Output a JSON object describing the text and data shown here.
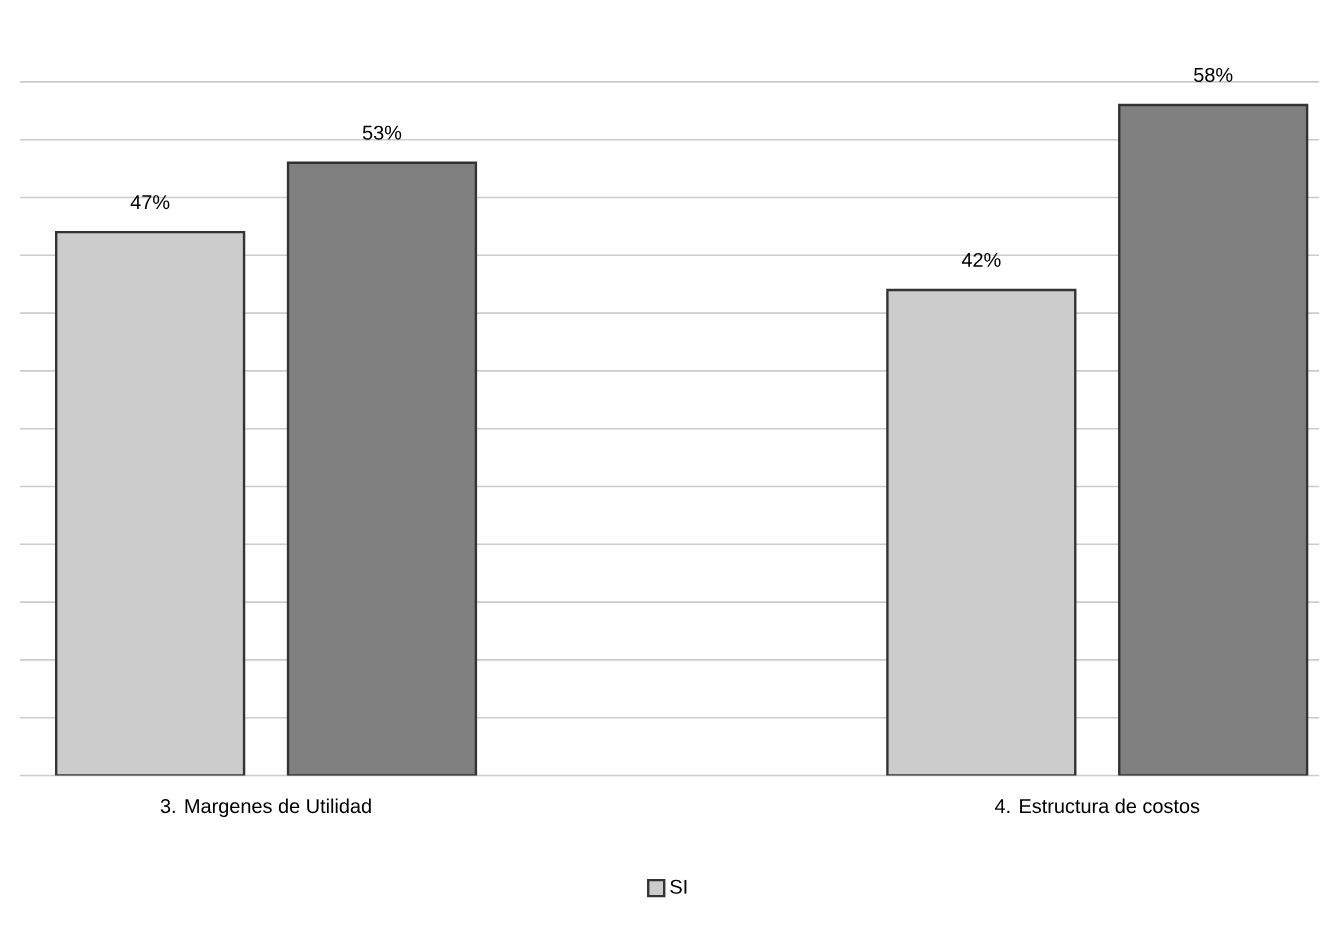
{
  "chart_data": {
    "type": "bar",
    "grid": "y",
    "legend": "bottom",
    "categories": [
      "3. Margenes de Utilidad",
      "4. Estructura de costos"
    ],
    "series": [
      {
        "name": "SI",
        "color": "#cccccc",
        "values": [
          47,
          42
        ],
        "value_labels": [
          "47%",
          "42%"
        ]
      },
      {
        "color": "#808080",
        "values": [
          53,
          58
        ],
        "value_labels": [
          "53%",
          "58%"
        ]
      }
    ]
  }
}
